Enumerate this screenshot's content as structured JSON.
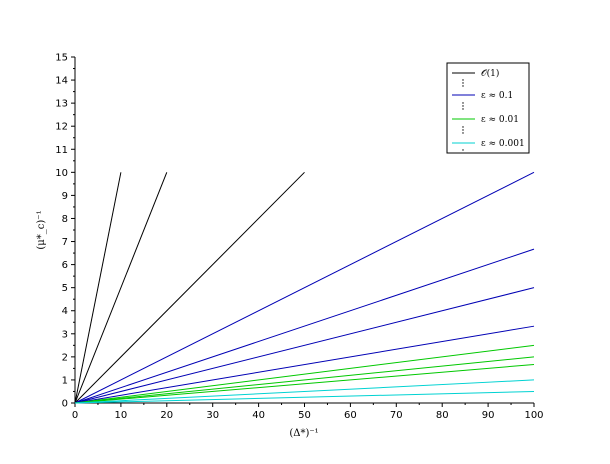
{
  "chart_data": {
    "type": "line",
    "title": "",
    "xlabel": "(Δ*)⁻¹",
    "ylabel": "(μ*_c)⁻¹",
    "xlim": [
      0,
      100
    ],
    "ylim": [
      0,
      15
    ],
    "x_ticks": [
      0,
      10,
      20,
      30,
      40,
      50,
      60,
      70,
      80,
      90,
      100
    ],
    "y_ticks": [
      0,
      1,
      2,
      3,
      4,
      5,
      6,
      7,
      8,
      9,
      10,
      11,
      12,
      13,
      14,
      15
    ],
    "grid": false,
    "legend_position": "top-right",
    "legend": [
      {
        "label": "𝒪(1)",
        "color": "#000000"
      },
      {
        "label": "ε ≈ 0.1",
        "color": "#0000b4"
      },
      {
        "label": "ε ≈ 0.01",
        "color": "#00c800"
      },
      {
        "label": "ε ≈ 0.001",
        "color": "#00d2d2"
      }
    ],
    "series": [
      {
        "group": "𝒪(1)",
        "color": "#000000",
        "x": [
          0,
          10
        ],
        "y": [
          0,
          10
        ]
      },
      {
        "group": "𝒪(1)",
        "color": "#000000",
        "x": [
          0,
          20
        ],
        "y": [
          0,
          10
        ]
      },
      {
        "group": "𝒪(1)",
        "color": "#000000",
        "x": [
          0,
          50
        ],
        "y": [
          0,
          10
        ]
      },
      {
        "group": "ε ≈ 0.1",
        "color": "#0000b4",
        "x": [
          0,
          100
        ],
        "y": [
          0,
          10
        ]
      },
      {
        "group": "ε ≈ 0.1",
        "color": "#0000b4",
        "x": [
          0,
          100
        ],
        "y": [
          0,
          6.67
        ]
      },
      {
        "group": "ε ≈ 0.1",
        "color": "#0000b4",
        "x": [
          0,
          100
        ],
        "y": [
          0,
          5
        ]
      },
      {
        "group": "ε ≈ 0.1",
        "color": "#0000b4",
        "x": [
          0,
          100
        ],
        "y": [
          0,
          3.33
        ]
      },
      {
        "group": "ε ≈ 0.01",
        "color": "#00c800",
        "x": [
          0,
          100
        ],
        "y": [
          0,
          2.5
        ]
      },
      {
        "group": "ε ≈ 0.01",
        "color": "#00c800",
        "x": [
          0,
          100
        ],
        "y": [
          0,
          2
        ]
      },
      {
        "group": "ε ≈ 0.01",
        "color": "#00c800",
        "x": [
          0,
          100
        ],
        "y": [
          0,
          1.67
        ]
      },
      {
        "group": "ε ≈ 0.001",
        "color": "#00d2d2",
        "x": [
          0,
          100
        ],
        "y": [
          0,
          1
        ]
      },
      {
        "group": "ε ≈ 0.001",
        "color": "#00d2d2",
        "x": [
          0,
          100
        ],
        "y": [
          0,
          0.5
        ]
      }
    ]
  }
}
